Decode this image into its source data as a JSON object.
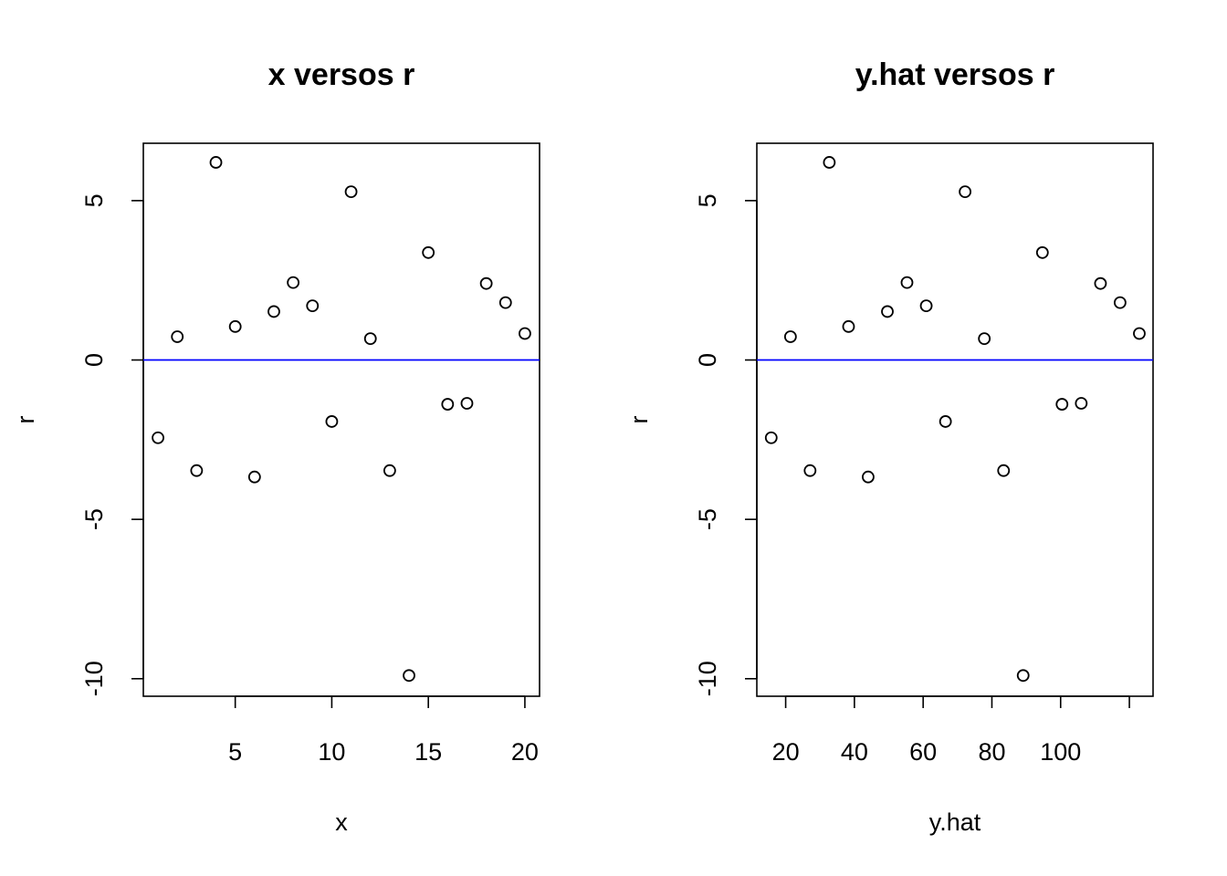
{
  "colors": {
    "points": "#000000",
    "reference_line": "#0000ff",
    "frame": "#000000",
    "background": "#ffffff"
  },
  "chart_data": [
    {
      "type": "scatter",
      "title": "x versos r",
      "xlabel": "x",
      "ylabel": "r",
      "xlim": [
        0.24,
        20.76
      ],
      "ylim": [
        -10.55,
        6.8
      ],
      "xticks": [
        5,
        10,
        15,
        20
      ],
      "yticks": [
        -10,
        -5,
        0,
        5
      ],
      "x": [
        1,
        2,
        3,
        4,
        5,
        6,
        7,
        8,
        9,
        10,
        11,
        12,
        13,
        14,
        15,
        16,
        17,
        18,
        19,
        20
      ],
      "y": [
        -2.44,
        0.73,
        -3.47,
        6.2,
        1.05,
        -3.67,
        1.52,
        2.43,
        1.7,
        -1.93,
        5.28,
        0.67,
        -3.47,
        -9.9,
        3.37,
        -1.39,
        -1.36,
        2.4,
        1.8,
        0.83
      ],
      "reference_line": {
        "orientation": "horizontal",
        "y": 0
      },
      "grid": false,
      "marker": "open-circle"
    },
    {
      "type": "scatter",
      "title": "y.hat versos r",
      "xlabel": "y.hat",
      "ylabel": "r",
      "xlim": [
        11.61,
        126.89
      ],
      "ylim": [
        -10.55,
        6.8
      ],
      "xticks": [
        20,
        40,
        60,
        80,
        100,
        120
      ],
      "xtick_labels": [
        "20",
        "40",
        "60",
        "80",
        "100",
        ""
      ],
      "yticks": [
        -10,
        -5,
        0,
        5
      ],
      "x": [
        15.8,
        21.4,
        27.1,
        32.7,
        38.3,
        44.0,
        49.6,
        55.3,
        60.9,
        66.5,
        72.2,
        77.8,
        83.4,
        89.1,
        94.7,
        100.4,
        106.0,
        111.6,
        117.3,
        122.9
      ],
      "y": [
        -2.44,
        0.73,
        -3.47,
        6.2,
        1.05,
        -3.67,
        1.52,
        2.43,
        1.7,
        -1.93,
        5.28,
        0.67,
        -3.47,
        -9.9,
        3.37,
        -1.39,
        -1.36,
        2.4,
        1.8,
        0.83
      ],
      "reference_line": {
        "orientation": "horizontal",
        "y": 0
      },
      "grid": false,
      "marker": "open-circle"
    }
  ]
}
